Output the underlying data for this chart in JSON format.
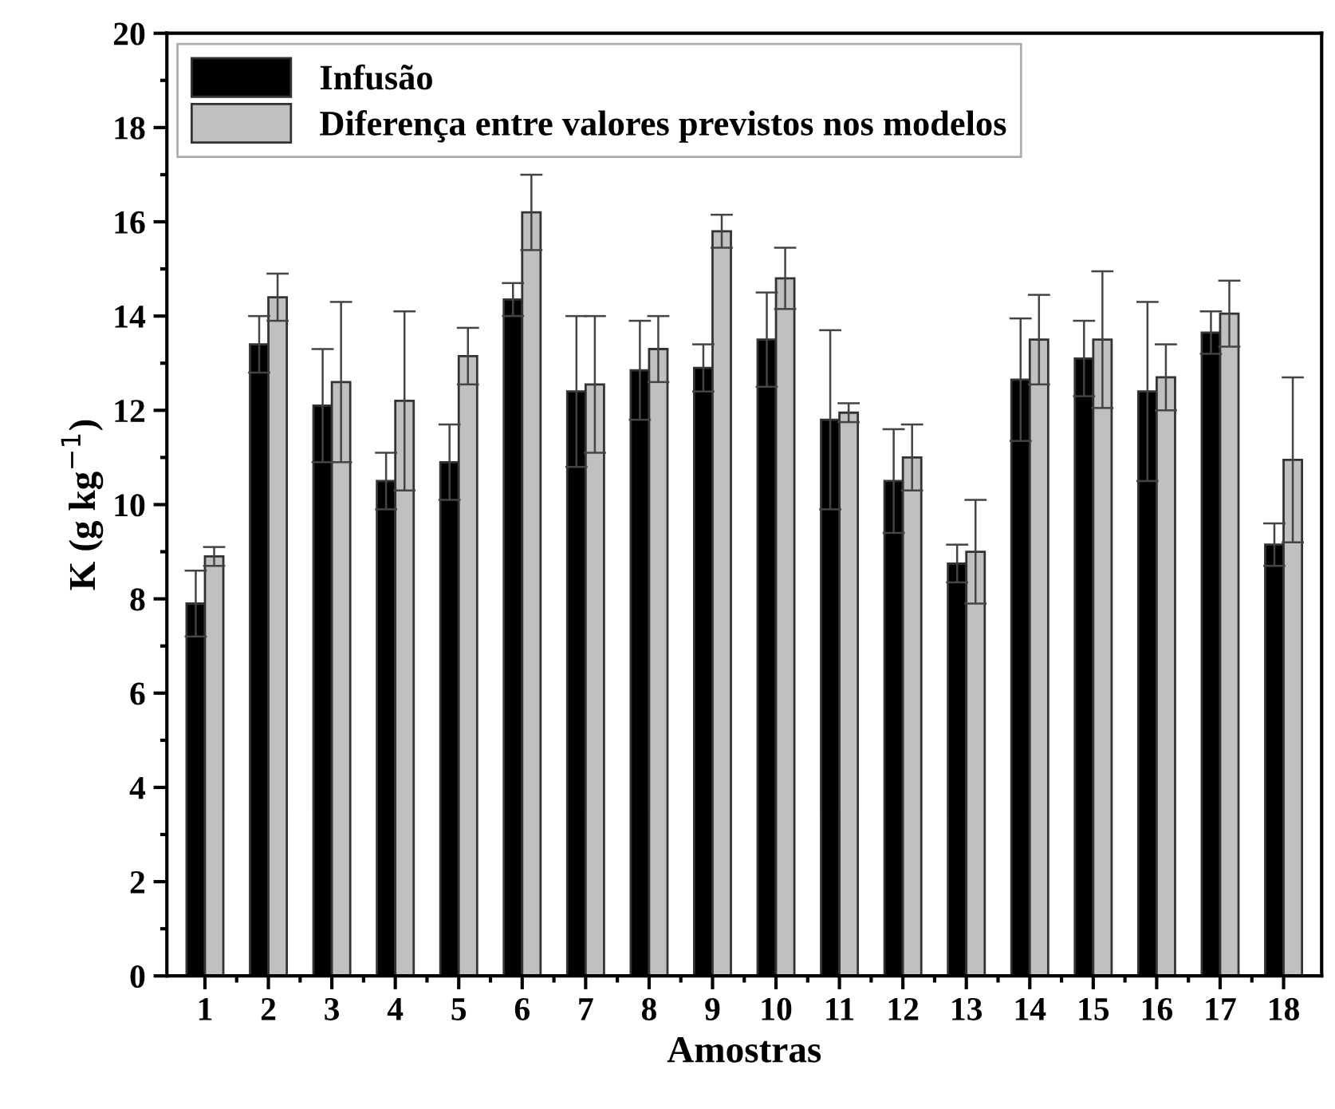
{
  "chart_data": {
    "type": "bar",
    "xlabel": "Amostras",
    "ylabel": "K (g kg$^{−1}$)",
    "categories": [
      "1",
      "2",
      "3",
      "4",
      "5",
      "6",
      "7",
      "8",
      "9",
      "10",
      "11",
      "12",
      "13",
      "14",
      "15",
      "16",
      "17",
      "18"
    ],
    "series": [
      {
        "name": "Infusão",
        "color": "#000000",
        "values": [
          7.9,
          13.4,
          12.1,
          10.5,
          10.9,
          14.35,
          12.4,
          12.85,
          12.9,
          13.5,
          11.8,
          10.5,
          8.75,
          12.65,
          13.1,
          12.4,
          13.65,
          9.15
        ],
        "errors": [
          0.7,
          0.6,
          1.2,
          0.6,
          0.8,
          0.35,
          1.6,
          1.05,
          0.5,
          1.0,
          1.9,
          1.1,
          0.4,
          1.3,
          0.8,
          1.9,
          0.45,
          0.45
        ]
      },
      {
        "name": "Diferença entre valores previstos nos modelos",
        "color": "#c0c0c0",
        "values": [
          8.9,
          14.4,
          12.6,
          12.2,
          13.15,
          16.2,
          12.55,
          13.3,
          15.8,
          14.8,
          11.95,
          11.0,
          9.0,
          13.5,
          13.5,
          12.7,
          14.05,
          10.95
        ],
        "errors": [
          0.2,
          0.5,
          1.7,
          1.9,
          0.6,
          0.8,
          1.45,
          0.7,
          0.35,
          0.65,
          0.2,
          0.7,
          1.1,
          0.95,
          1.45,
          0.7,
          0.7,
          1.75
        ]
      }
    ],
    "ylim": [
      0,
      20
    ],
    "yticks": [
      0,
      2,
      4,
      6,
      8,
      10,
      12,
      14,
      16,
      18,
      20
    ],
    "grid": false,
    "legend": "top left"
  }
}
